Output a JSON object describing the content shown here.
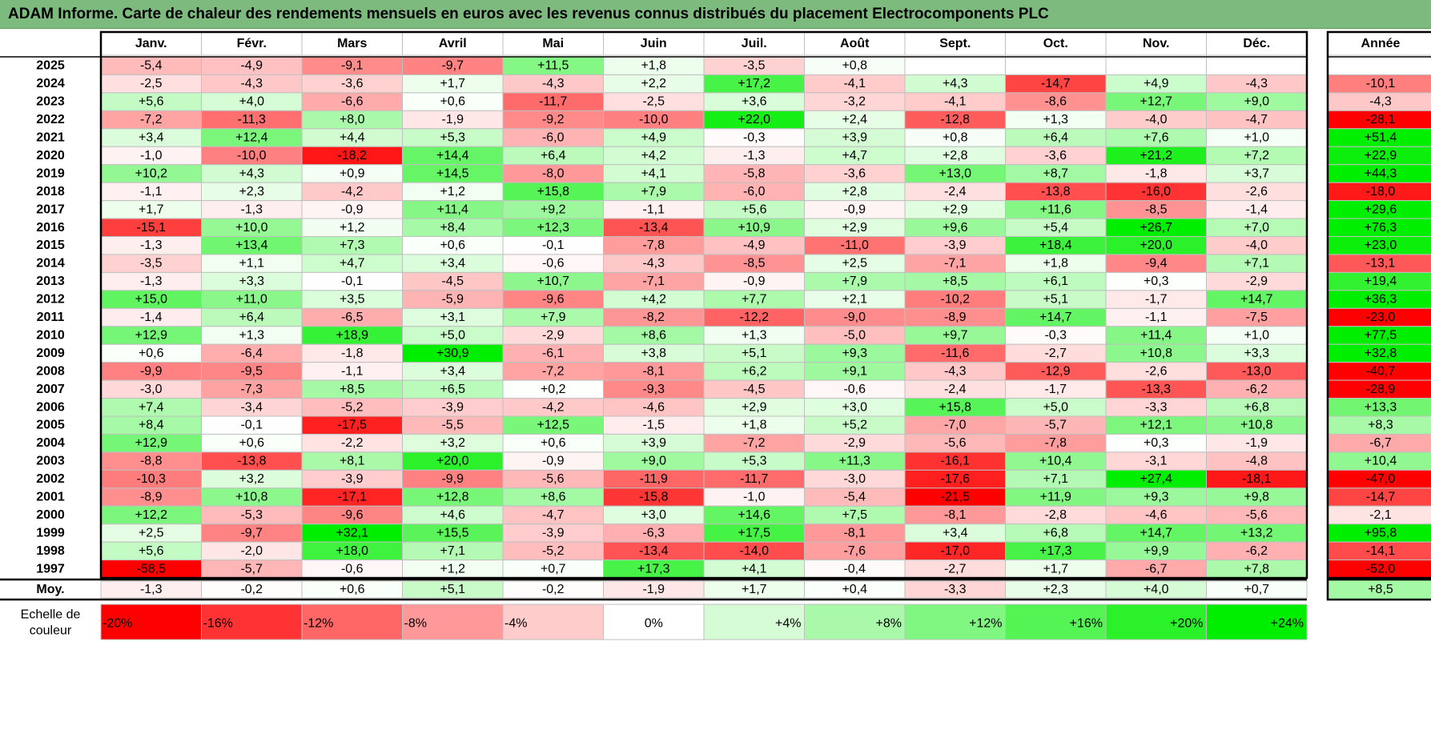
{
  "title": "ADAM Informe. Carte de chaleur des rendements mensuels en euros avec les revenus connus distribués du placement Electrocomponents PLC",
  "chart_data": {
    "type": "heatmap",
    "title": "ADAM Informe. Carte de chaleur des rendements mensuels en euros avec les revenus connus distribués du placement Electrocomponents PLC",
    "columns": [
      "Janv.",
      "Févr.",
      "Mars",
      "Avril",
      "Mai",
      "Juin",
      "Juil.",
      "Août",
      "Sept.",
      "Oct.",
      "Nov.",
      "Déc."
    ],
    "year_column_label": "Année",
    "rows": [
      {
        "year": "2025",
        "months": [
          "-5,4",
          "-4,9",
          "-9,1",
          "-9,7",
          "+11,5",
          "+1,8",
          "-3,5",
          "+0,8",
          "",
          "",
          "",
          ""
        ],
        "annual": ""
      },
      {
        "year": "2024",
        "months": [
          "-2,5",
          "-4,3",
          "-3,6",
          "+1,7",
          "-4,3",
          "+2,2",
          "+17,2",
          "-4,1",
          "+4,3",
          "-14,7",
          "+4,9",
          "-4,3"
        ],
        "annual": "-10,1"
      },
      {
        "year": "2023",
        "months": [
          "+5,6",
          "+4,0",
          "-6,6",
          "+0,6",
          "-11,7",
          "-2,5",
          "+3,6",
          "-3,2",
          "-4,1",
          "-8,6",
          "+12,7",
          "+9,0"
        ],
        "annual": "-4,3"
      },
      {
        "year": "2022",
        "months": [
          "-7,2",
          "-11,3",
          "+8,0",
          "-1,9",
          "-9,2",
          "-10,0",
          "+22,0",
          "+2,4",
          "-12,8",
          "+1,3",
          "-4,0",
          "-4,7"
        ],
        "annual": "-28,1"
      },
      {
        "year": "2021",
        "months": [
          "+3,4",
          "+12,4",
          "+4,4",
          "+5,3",
          "-6,0",
          "+4,9",
          "-0,3",
          "+3,9",
          "+0,8",
          "+6,4",
          "+7,6",
          "+1,0"
        ],
        "annual": "+51,4"
      },
      {
        "year": "2020",
        "months": [
          "-1,0",
          "-10,0",
          "-18,2",
          "+14,4",
          "+6,4",
          "+4,2",
          "-1,3",
          "+4,7",
          "+2,8",
          "-3,6",
          "+21,2",
          "+7,2"
        ],
        "annual": "+22,9"
      },
      {
        "year": "2019",
        "months": [
          "+10,2",
          "+4,3",
          "+0,9",
          "+14,5",
          "-8,0",
          "+4,1",
          "-5,8",
          "-3,6",
          "+13,0",
          "+8,7",
          "-1,8",
          "+3,7"
        ],
        "annual": "+44,3"
      },
      {
        "year": "2018",
        "months": [
          "-1,1",
          "+2,3",
          "-4,2",
          "+1,2",
          "+15,8",
          "+7,9",
          "-6,0",
          "+2,8",
          "-2,4",
          "-13,8",
          "-16,0",
          "-2,6"
        ],
        "annual": "-18,0"
      },
      {
        "year": "2017",
        "months": [
          "+1,7",
          "-1,3",
          "-0,9",
          "+11,4",
          "+9,2",
          "-1,1",
          "+5,6",
          "-0,9",
          "+2,9",
          "+11,6",
          "-8,5",
          "-1,4"
        ],
        "annual": "+29,6"
      },
      {
        "year": "2016",
        "months": [
          "-15,1",
          "+10,0",
          "+1,2",
          "+8,4",
          "+12,3",
          "-13,4",
          "+10,9",
          "+2,9",
          "+9,6",
          "+5,4",
          "+26,7",
          "+7,0"
        ],
        "annual": "+76,3"
      },
      {
        "year": "2015",
        "months": [
          "-1,3",
          "+13,4",
          "+7,3",
          "+0,6",
          "-0,1",
          "-7,8",
          "-4,9",
          "-11,0",
          "-3,9",
          "+18,4",
          "+20,0",
          "-4,0"
        ],
        "annual": "+23,0"
      },
      {
        "year": "2014",
        "months": [
          "-3,5",
          "+1,1",
          "+4,7",
          "+3,4",
          "-0,6",
          "-4,3",
          "-8,5",
          "+2,5",
          "-7,1",
          "+1,8",
          "-9,4",
          "+7,1"
        ],
        "annual": "-13,1"
      },
      {
        "year": "2013",
        "months": [
          "-1,3",
          "+3,3",
          "-0,1",
          "-4,5",
          "+10,7",
          "-7,1",
          "-0,9",
          "+7,9",
          "+8,5",
          "+6,1",
          "+0,3",
          "-2,9"
        ],
        "annual": "+19,4"
      },
      {
        "year": "2012",
        "months": [
          "+15,0",
          "+11,0",
          "+3,5",
          "-5,9",
          "-9,6",
          "+4,2",
          "+7,7",
          "+2,1",
          "-10,2",
          "+5,1",
          "-1,7",
          "+14,7"
        ],
        "annual": "+36,3"
      },
      {
        "year": "2011",
        "months": [
          "-1,4",
          "+6,4",
          "-6,5",
          "+3,1",
          "+7,9",
          "-8,2",
          "-12,2",
          "-9,0",
          "-8,9",
          "+14,7",
          "-1,1",
          "-7,5"
        ],
        "annual": "-23,0"
      },
      {
        "year": "2010",
        "months": [
          "+12,9",
          "+1,3",
          "+18,9",
          "+5,0",
          "-2,9",
          "+8,6",
          "+1,3",
          "-5,0",
          "+9,7",
          "-0,3",
          "+11,4",
          "+1,0"
        ],
        "annual": "+77,5"
      },
      {
        "year": "2009",
        "months": [
          "+0,6",
          "-6,4",
          "-1,8",
          "+30,9",
          "-6,1",
          "+3,8",
          "+5,1",
          "+9,3",
          "-11,6",
          "-2,7",
          "+10,8",
          "+3,3"
        ],
        "annual": "+32,8"
      },
      {
        "year": "2008",
        "months": [
          "-9,9",
          "-9,5",
          "-1,1",
          "+3,4",
          "-7,2",
          "-8,1",
          "+6,2",
          "+9,1",
          "-4,3",
          "-12,9",
          "-2,6",
          "-13,0"
        ],
        "annual": "-40,7"
      },
      {
        "year": "2007",
        "months": [
          "-3,0",
          "-7,3",
          "+8,5",
          "+6,5",
          "+0,2",
          "-9,3",
          "-4,5",
          "-0,6",
          "-2,4",
          "-1,7",
          "-13,3",
          "-6,2"
        ],
        "annual": "-28,9"
      },
      {
        "year": "2006",
        "months": [
          "+7,4",
          "-3,4",
          "-5,2",
          "-3,9",
          "-4,2",
          "-4,6",
          "+2,9",
          "+3,0",
          "+15,8",
          "+5,0",
          "-3,3",
          "+6,8"
        ],
        "annual": "+13,3"
      },
      {
        "year": "2005",
        "months": [
          "+8,4",
          "-0,1",
          "-17,5",
          "-5,5",
          "+12,5",
          "-1,5",
          "+1,8",
          "+5,2",
          "-7,0",
          "-5,7",
          "+12,1",
          "+10,8"
        ],
        "annual": "+8,3"
      },
      {
        "year": "2004",
        "months": [
          "+12,9",
          "+0,6",
          "-2,2",
          "+3,2",
          "+0,6",
          "+3,9",
          "-7,2",
          "-2,9",
          "-5,6",
          "-7,8",
          "+0,3",
          "-1,9"
        ],
        "annual": "-6,7"
      },
      {
        "year": "2003",
        "months": [
          "-8,8",
          "-13,8",
          "+8,1",
          "+20,0",
          "-0,9",
          "+9,0",
          "+5,3",
          "+11,3",
          "-16,1",
          "+10,4",
          "-3,1",
          "-4,8"
        ],
        "annual": "+10,4"
      },
      {
        "year": "2002",
        "months": [
          "-10,3",
          "+3,2",
          "-3,9",
          "-9,9",
          "-5,6",
          "-11,9",
          "-11,7",
          "-3,0",
          "-17,6",
          "+7,1",
          "+27,4",
          "-18,1"
        ],
        "annual": "-47,0"
      },
      {
        "year": "2001",
        "months": [
          "-8,9",
          "+10,8",
          "-17,1",
          "+12,8",
          "+8,6",
          "-15,8",
          "-1,0",
          "-5,4",
          "-21,5",
          "+11,9",
          "+9,3",
          "+9,8"
        ],
        "annual": "-14,7"
      },
      {
        "year": "2000",
        "months": [
          "+12,2",
          "-5,3",
          "-9,6",
          "+4,6",
          "-4,7",
          "+3,0",
          "+14,6",
          "+7,5",
          "-8,1",
          "-2,8",
          "-4,6",
          "-5,6"
        ],
        "annual": "-2,1"
      },
      {
        "year": "1999",
        "months": [
          "+2,5",
          "-9,7",
          "+32,1",
          "+15,5",
          "-3,9",
          "-6,3",
          "+17,5",
          "-8,1",
          "+3,4",
          "+6,8",
          "+14,7",
          "+13,2"
        ],
        "annual": "+95,8"
      },
      {
        "year": "1998",
        "months": [
          "+5,6",
          "-2,0",
          "+18,0",
          "+7,1",
          "-5,2",
          "-13,4",
          "-14,0",
          "-7,6",
          "-17,0",
          "+17,3",
          "+9,9",
          "-6,2"
        ],
        "annual": "-14,1"
      },
      {
        "year": "1997",
        "months": [
          "-58,5",
          "-5,7",
          "-0,6",
          "+1,2",
          "+0,7",
          "+17,3",
          "+4,1",
          "-0,4",
          "-2,7",
          "+1,7",
          "-6,7",
          "+7,8"
        ],
        "annual": "-52,0"
      }
    ],
    "average": {
      "label": "Moy.",
      "months": [
        "-1,3",
        "-0,2",
        "+0,6",
        "+5,1",
        "-0,2",
        "-1,9",
        "+1,7",
        "+0,4",
        "-3,3",
        "+2,3",
        "+4,0",
        "+0,7"
      ],
      "annual": "+8,5"
    },
    "scale": {
      "label_line1": "Echelle de",
      "label_line2": "couleur",
      "items": [
        "-20%",
        "-16%",
        "-12%",
        "-8%",
        "-4%",
        "0%",
        "+4%",
        "+8%",
        "+12%",
        "+16%",
        "+20%",
        "+24%"
      ]
    },
    "colors": {
      "negative_max": "#ff0000",
      "neutral": "#ffffff",
      "positive_max": "#00ee00",
      "title_bar": "#7dba7e",
      "grid": "#bfbfbf",
      "border": "#000000"
    }
  }
}
